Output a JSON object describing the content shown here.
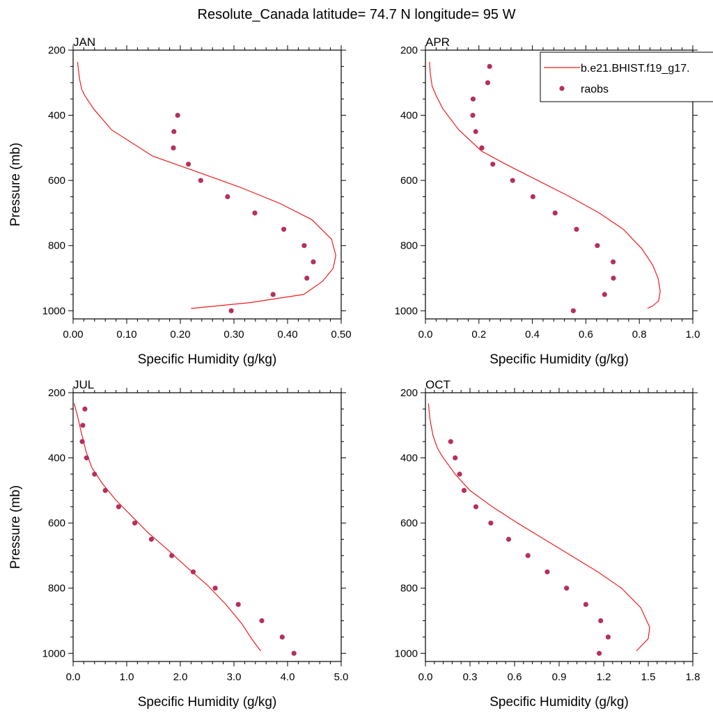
{
  "figure": {
    "title": "Resolute_Canada  latitude= 74.7 N longitude= 95 W"
  },
  "legend": {
    "location": "top-right of APR panel",
    "entries": [
      {
        "name": "b.e21.BHIST.f19_g17.",
        "style": "line",
        "color": "#ee1c1c"
      },
      {
        "name": "raobs",
        "style": "marker",
        "color": "#b5305c"
      }
    ]
  },
  "chart_data": [
    {
      "type": "line",
      "panel": "JAN",
      "title": "JAN",
      "xlabel": "Specific Humidity (g/kg)",
      "ylabel": "Pressure (mb)",
      "xlim": [
        0,
        0.5
      ],
      "ylim": [
        1025,
        200
      ],
      "y_inverted": true,
      "xticks": [
        "0.00",
        "0.10",
        "0.20",
        "0.30",
        "0.40",
        "0.50"
      ],
      "yticks": [
        "200",
        "400",
        "600",
        "800",
        "1000"
      ],
      "series": [
        {
          "name": "b.e21.BHIST.f19_g17.",
          "type": "line",
          "x": [
            0.008,
            0.01,
            0.012,
            0.016,
            0.022,
            0.038,
            0.072,
            0.148,
            0.225,
            0.31,
            0.385,
            0.445,
            0.482,
            0.49,
            0.485,
            0.465,
            0.43,
            0.33,
            0.22
          ],
          "y": [
            236,
            260,
            288,
            320,
            340,
            380,
            445,
            525,
            570,
            620,
            670,
            720,
            780,
            830,
            870,
            910,
            950,
            975,
            993
          ]
        },
        {
          "name": "raobs",
          "type": "scatter",
          "x": [
            0.195,
            0.188,
            0.187,
            0.215,
            0.238,
            0.288,
            0.339,
            0.393,
            0.431,
            0.448,
            0.436,
            0.373,
            0.295
          ],
          "y": [
            400,
            450,
            500,
            550,
            600,
            650,
            700,
            750,
            800,
            850,
            900,
            950,
            1000
          ]
        }
      ]
    },
    {
      "type": "line",
      "panel": "APR",
      "title": "APR",
      "xlabel": "Specific Humidity (g/kg)",
      "ylabel": "",
      "xlim": [
        0,
        1.0
      ],
      "ylim": [
        1025,
        200
      ],
      "y_inverted": true,
      "xticks": [
        "0.0",
        "0.2",
        "0.4",
        "0.6",
        "0.8",
        "1.0"
      ],
      "yticks": [
        "200",
        "400",
        "600",
        "800",
        "1000"
      ],
      "series": [
        {
          "name": "b.e21.BHIST.f19_g17.",
          "type": "line",
          "x": [
            0.015,
            0.018,
            0.025,
            0.04,
            0.065,
            0.125,
            0.21,
            0.3,
            0.42,
            0.54,
            0.65,
            0.74,
            0.81,
            0.85,
            0.87,
            0.878,
            0.872,
            0.85,
            0.83
          ],
          "y": [
            236,
            270,
            310,
            340,
            380,
            445,
            510,
            550,
            600,
            650,
            700,
            750,
            810,
            860,
            900,
            940,
            970,
            985,
            993
          ]
        },
        {
          "name": "raobs",
          "type": "scatter",
          "x": [
            0.24,
            0.233,
            0.178,
            0.177,
            0.188,
            0.211,
            0.252,
            0.326,
            0.402,
            0.485,
            0.565,
            0.643,
            0.702,
            0.703,
            0.67,
            0.553
          ],
          "y": [
            250,
            300,
            350,
            400,
            450,
            500,
            550,
            600,
            650,
            700,
            750,
            800,
            850,
            900,
            950,
            1000
          ]
        }
      ]
    },
    {
      "type": "line",
      "panel": "JUL",
      "title": "JUL",
      "xlabel": "Specific Humidity (g/kg)",
      "ylabel": "Pressure (mb)",
      "xlim": [
        0,
        5.0
      ],
      "ylim": [
        1025,
        200
      ],
      "y_inverted": true,
      "xticks": [
        "0.0",
        "1.0",
        "2.0",
        "3.0",
        "4.0",
        "5.0"
      ],
      "yticks": [
        "200",
        "400",
        "600",
        "800",
        "1000"
      ],
      "series": [
        {
          "name": "b.e21.BHIST.f19_g17.",
          "type": "line",
          "x": [
            0.02,
            0.08,
            0.15,
            0.24,
            0.35,
            0.55,
            0.8,
            1.1,
            1.4,
            1.75,
            2.15,
            2.5,
            2.85,
            3.15,
            3.35,
            3.5
          ],
          "y": [
            233,
            270,
            320,
            380,
            430,
            480,
            530,
            580,
            630,
            680,
            740,
            790,
            850,
            910,
            960,
            993
          ]
        },
        {
          "name": "raobs",
          "type": "scatter",
          "x": [
            0.22,
            0.18,
            0.17,
            0.25,
            0.4,
            0.6,
            0.85,
            1.15,
            1.46,
            1.84,
            2.24,
            2.65,
            3.08,
            3.52,
            3.9,
            4.12
          ],
          "y": [
            250,
            300,
            350,
            400,
            450,
            500,
            550,
            600,
            650,
            700,
            750,
            800,
            850,
            900,
            950,
            1000
          ]
        }
      ]
    },
    {
      "type": "line",
      "panel": "OCT",
      "title": "OCT",
      "xlabel": "Specific Humidity (g/kg)",
      "ylabel": "",
      "xlim": [
        0,
        1.8
      ],
      "ylim": [
        1025,
        200
      ],
      "y_inverted": true,
      "xticks": [
        "0.0",
        "0.3",
        "0.6",
        "0.9",
        "1.2",
        "1.5",
        "1.8"
      ],
      "yticks": [
        "200",
        "400",
        "600",
        "800",
        "1000"
      ],
      "series": [
        {
          "name": "b.e21.BHIST.f19_g17.",
          "type": "line",
          "x": [
            0.02,
            0.03,
            0.05,
            0.08,
            0.12,
            0.2,
            0.3,
            0.45,
            0.62,
            0.8,
            0.98,
            1.16,
            1.32,
            1.45,
            1.51,
            1.5,
            1.42
          ],
          "y": [
            233,
            280,
            330,
            370,
            400,
            450,
            500,
            550,
            600,
            650,
            700,
            750,
            800,
            860,
            920,
            955,
            993
          ]
        },
        {
          "name": "raobs",
          "type": "scatter",
          "x": [
            0.17,
            0.2,
            0.23,
            0.26,
            0.34,
            0.44,
            0.56,
            0.69,
            0.82,
            0.95,
            1.08,
            1.18,
            1.23,
            1.17
          ],
          "y": [
            350,
            400,
            450,
            500,
            550,
            600,
            650,
            700,
            750,
            800,
            850,
            900,
            950,
            1000
          ]
        }
      ]
    }
  ]
}
